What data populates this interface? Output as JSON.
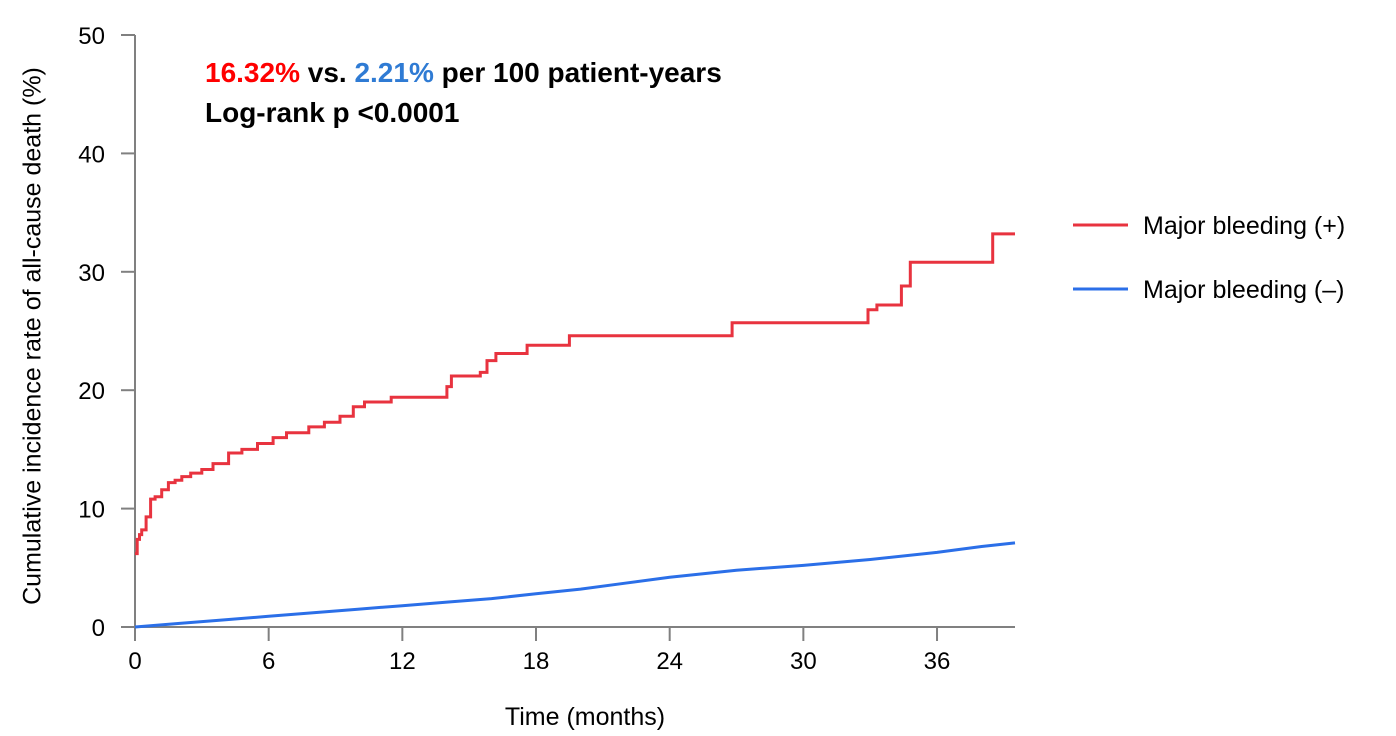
{
  "chart_data": {
    "type": "line",
    "step": true,
    "xlabel": "Time (months)",
    "ylabel": "Cumulative incidence rate of all-cause death (%)",
    "xlim": [
      0,
      39.5
    ],
    "ylim": [
      0,
      50
    ],
    "xticks": [
      0,
      6,
      12,
      18,
      24,
      30,
      36
    ],
    "yticks": [
      0,
      10,
      20,
      30,
      40,
      50
    ],
    "annotation": {
      "rate_plus": "16.32%",
      "vs": " vs. ",
      "rate_minus": "2.21%",
      "suffix": " per 100 patient-years",
      "logrank": "Log-rank p <0.0001"
    },
    "legend_position": "right",
    "series": [
      {
        "name": "Major bleeding (+)",
        "color": "#e8333f",
        "x": [
          0,
          0.1,
          0.2,
          0.3,
          0.5,
          0.7,
          0.9,
          1.2,
          1.5,
          1.8,
          2.1,
          2.5,
          3.0,
          3.5,
          4.2,
          4.8,
          5.5,
          6.2,
          6.8,
          7.8,
          8.5,
          9.2,
          9.8,
          10.3,
          11.5,
          13.8,
          14.0,
          14.2,
          15.5,
          15.8,
          16.2,
          17.6,
          19.5,
          26.8,
          32.9,
          33.3,
          34.0,
          34.4,
          34.8,
          38.3,
          38.5,
          39.5
        ],
        "y": [
          6.2,
          7.4,
          7.8,
          8.2,
          9.3,
          10.8,
          11.0,
          11.6,
          12.2,
          12.4,
          12.7,
          13.0,
          13.3,
          13.8,
          14.7,
          15.0,
          15.5,
          16.0,
          16.4,
          16.9,
          17.3,
          17.8,
          18.6,
          19.0,
          19.4,
          19.4,
          20.3,
          21.2,
          21.5,
          22.5,
          23.1,
          23.8,
          24.6,
          25.7,
          26.8,
          27.2,
          27.2,
          28.8,
          30.8,
          30.8,
          33.2,
          33.2
        ]
      },
      {
        "name": "Major bleeding (–)",
        "color": "#2b6fe8",
        "x": [
          0,
          2,
          4,
          6,
          8,
          10,
          12,
          14,
          16,
          18,
          20,
          22,
          24,
          27,
          30,
          33,
          36,
          38,
          39.5
        ],
        "y": [
          0,
          0.3,
          0.6,
          0.9,
          1.2,
          1.5,
          1.8,
          2.1,
          2.4,
          2.8,
          3.2,
          3.7,
          4.2,
          4.8,
          5.2,
          5.7,
          6.3,
          6.8,
          7.1
        ]
      }
    ]
  }
}
